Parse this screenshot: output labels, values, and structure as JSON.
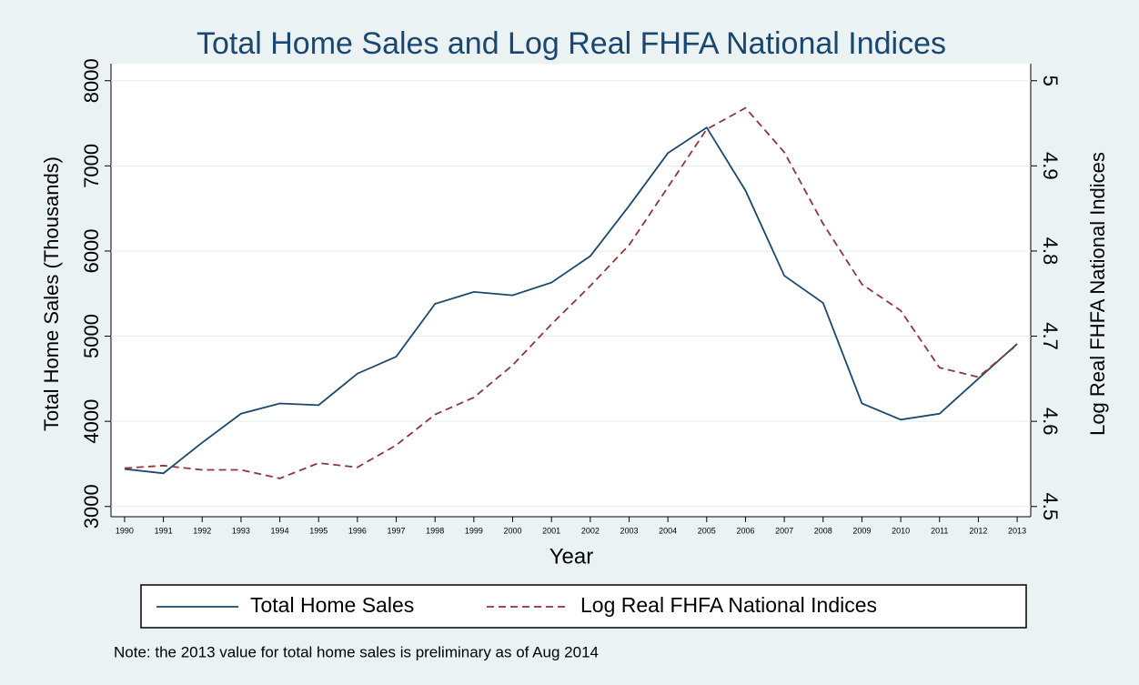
{
  "chart_data": {
    "type": "line",
    "title": "Total Home Sales and Log Real FHFA National Indices",
    "x_label": "Year",
    "y_label": "Total Home Sales (Thousands)",
    "y2_label": "Log Real FHFA National Indices",
    "note": "Note: the 2013 value for total home sales is preliminary as of Aug 2014",
    "x": [
      1990,
      1991,
      1992,
      1993,
      1994,
      1995,
      1996,
      1997,
      1998,
      1999,
      2000,
      2001,
      2002,
      2003,
      2004,
      2005,
      2006,
      2007,
      2008,
      2009,
      2010,
      2011,
      2012,
      2013
    ],
    "xlim": [
      1989.65,
      2013.35
    ],
    "xticks": [
      1990,
      1991,
      1992,
      1993,
      1994,
      1995,
      1996,
      1997,
      1998,
      1999,
      2000,
      2001,
      2002,
      2003,
      2004,
      2005,
      2006,
      2007,
      2008,
      2009,
      2010,
      2011,
      2012,
      2013
    ],
    "ylim": [
      2880,
      8200
    ],
    "yticks": [
      3000,
      4000,
      5000,
      6000,
      7000,
      8000
    ],
    "y2lim": [
      4.488,
      5.02
    ],
    "y2ticks": [
      4.5,
      4.6,
      4.7,
      4.8,
      4.9,
      5
    ],
    "grid": true,
    "series": [
      {
        "name": "Total Home Sales",
        "color": "#1a476f",
        "line_style": "solid",
        "values": [
          3440,
          3390,
          3750,
          4090,
          4210,
          4190,
          4560,
          4760,
          5380,
          5520,
          5480,
          5630,
          5940,
          6530,
          7150,
          7450,
          6710,
          5710,
          5390,
          4210,
          4020,
          4090,
          4500,
          4910
        ]
      },
      {
        "name": "Log Real FHFA National Indices",
        "color": "#90353b",
        "line_style": "dashed",
        "axis": "y2",
        "values": [
          4.545,
          4.548,
          4.543,
          4.543,
          4.533,
          4.551,
          4.546,
          4.572,
          4.608,
          4.628,
          4.666,
          4.714,
          4.759,
          4.807,
          4.875,
          4.943,
          4.968,
          4.916,
          4.832,
          4.761,
          4.73,
          4.663,
          4.652,
          4.69
        ]
      }
    ]
  }
}
